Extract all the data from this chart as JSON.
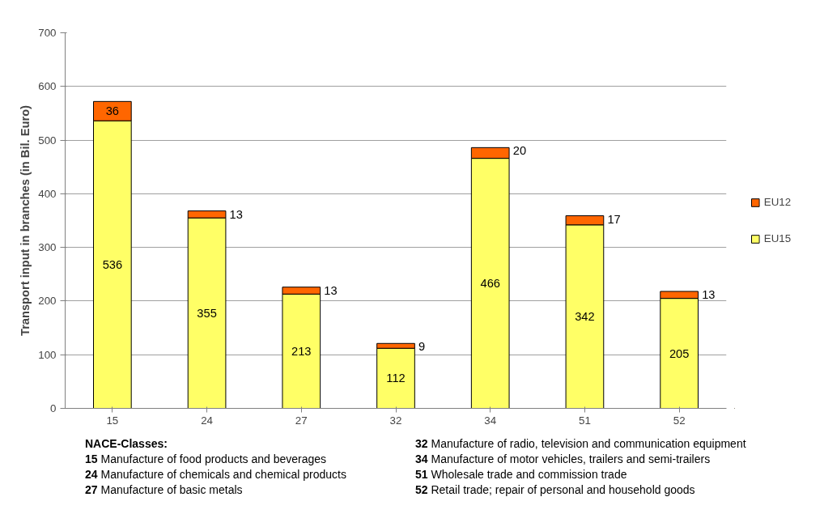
{
  "chart_data": {
    "type": "bar",
    "stacked": true,
    "ylabel": "Transport input in branches (in Bil. Euro)",
    "categories": [
      "15",
      "24",
      "27",
      "32",
      "34",
      "51",
      "52"
    ],
    "series": [
      {
        "name": "EU15",
        "color": "#ffff66",
        "values": [
          536,
          355,
          213,
          112,
          466,
          342,
          205
        ]
      },
      {
        "name": "EU12",
        "color": "#ff6600",
        "values": [
          36,
          13,
          13,
          9,
          20,
          17,
          13
        ]
      }
    ],
    "ylim": [
      0,
      700
    ],
    "yticks": [
      0,
      100,
      200,
      300,
      400,
      500,
      600,
      700
    ],
    "grid": "y",
    "legend": "right",
    "data_labels": true,
    "annotations": [
      "NACE-Classes:",
      "15 Manufacture of food products and beverages",
      "24 Manufacture of chemicals and chemical products",
      "27 Manufacture of basic metals",
      "32 Manufacture of radio, television and communication equipment",
      "34 Manufacture of motor vehicles, trailers and semi-trailers",
      "51 Wholesale trade and commission trade",
      "52 Retail trade; repair of personal and household goods"
    ]
  }
}
